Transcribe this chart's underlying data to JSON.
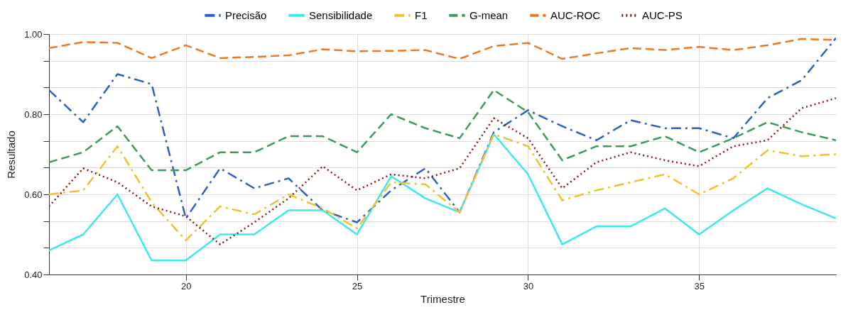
{
  "chart_data": {
    "type": "line",
    "xlabel": "Trimestre",
    "ylabel": "Resultado",
    "x": [
      16,
      17,
      18,
      19,
      20,
      21,
      22,
      23,
      24,
      25,
      26,
      27,
      28,
      29,
      30,
      31,
      32,
      33,
      34,
      35,
      36,
      37,
      38,
      39
    ],
    "series": [
      {
        "name": "Precisão",
        "color": "#2f5fc4",
        "line_style": "dashdot",
        "values": [
          0.86,
          0.78,
          0.9,
          0.875,
          0.54,
          0.665,
          0.615,
          0.64,
          0.56,
          0.53,
          0.61,
          0.665,
          0.555,
          0.755,
          0.81,
          0.77,
          0.735,
          0.785,
          0.765,
          0.765,
          0.74,
          0.84,
          0.885,
          0.99
        ]
      },
      {
        "name": "Sensibilidade",
        "color": "#3ee8e8",
        "line_style": "solid",
        "values": [
          0.46,
          0.5,
          0.6,
          0.435,
          0.435,
          0.5,
          0.5,
          0.56,
          0.56,
          0.5,
          0.645,
          0.59,
          0.555,
          0.75,
          0.65,
          0.475,
          0.52,
          0.52,
          0.565,
          0.5,
          0.56,
          0.615,
          0.575,
          0.54
        ]
      },
      {
        "name": "F1",
        "color": "#f0c030",
        "line_style": "dashdot",
        "values": [
          0.6,
          0.61,
          0.72,
          0.58,
          0.485,
          0.57,
          0.55,
          0.6,
          0.565,
          0.515,
          0.63,
          0.625,
          0.555,
          0.75,
          0.72,
          0.585,
          0.61,
          0.63,
          0.65,
          0.6,
          0.64,
          0.71,
          0.695,
          0.7
        ]
      },
      {
        "name": "G-mean",
        "color": "#3e9a5a",
        "line_style": "dashed",
        "values": [
          0.68,
          0.705,
          0.77,
          0.66,
          0.66,
          0.705,
          0.705,
          0.745,
          0.745,
          0.705,
          0.8,
          0.765,
          0.74,
          0.86,
          0.805,
          0.685,
          0.72,
          0.72,
          0.745,
          0.705,
          0.74,
          0.78,
          0.755,
          0.735
        ]
      },
      {
        "name": "AUC-ROC",
        "color": "#f07820",
        "line_style": "dashed",
        "values": [
          0.965,
          0.98,
          0.978,
          0.94,
          0.972,
          0.94,
          0.943,
          0.947,
          0.962,
          0.957,
          0.958,
          0.96,
          0.938,
          0.97,
          0.978,
          0.938,
          0.952,
          0.965,
          0.96,
          0.968,
          0.96,
          0.972,
          0.988,
          0.985
        ]
      },
      {
        "name": "AUC-PS",
        "color": "#8b1a1a",
        "line_style": "dotted",
        "values": [
          0.57,
          0.665,
          0.63,
          0.57,
          0.545,
          0.475,
          0.53,
          0.59,
          0.67,
          0.61,
          0.65,
          0.64,
          0.665,
          0.79,
          0.74,
          0.615,
          0.68,
          0.705,
          0.685,
          0.67,
          0.72,
          0.735,
          0.815,
          0.84
        ]
      }
    ],
    "xlim": [
      16,
      39
    ],
    "xticks": [
      20,
      25,
      30,
      35
    ],
    "ylim": [
      0.4,
      1.0
    ],
    "yticks": [
      {
        "value": 0.4,
        "label": "0.40"
      },
      {
        "value": 0.4667,
        "label": null
      },
      {
        "value": 0.5333,
        "label": null
      },
      {
        "value": 0.6,
        "label": "0.60"
      },
      {
        "value": 0.6667,
        "label": null
      },
      {
        "value": 0.7333,
        "label": null
      },
      {
        "value": 0.8,
        "label": "0.80"
      },
      {
        "value": 0.8667,
        "label": null
      },
      {
        "value": 0.9333,
        "label": null
      },
      {
        "value": 1.0,
        "label": "1.00"
      }
    ],
    "grid": true,
    "legend": "top",
    "marker": "none"
  }
}
